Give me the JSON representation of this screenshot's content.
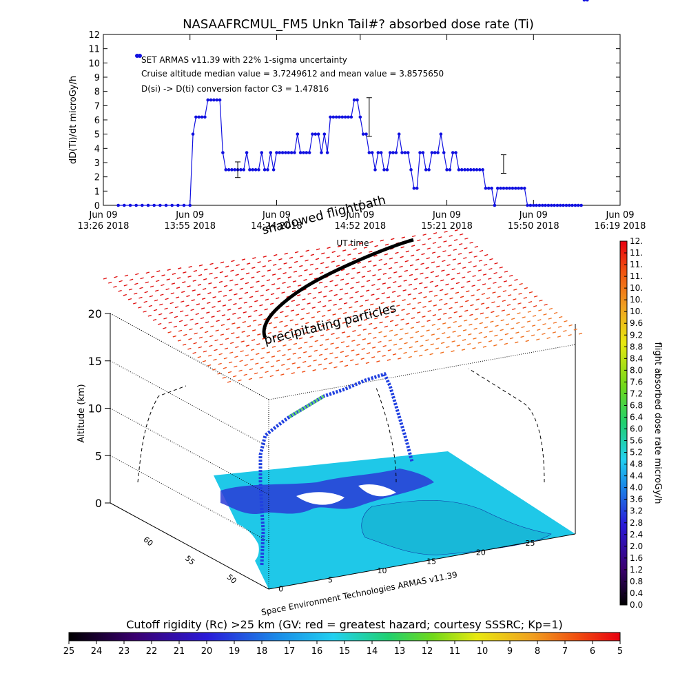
{
  "title": "NASAAFRCMUL_FM5 Unkn Tail#? absorbed dose rate (Ti)",
  "chart_data": [
    {
      "type": "line",
      "title": "NASAAFRCMUL_FM5 Unkn Tail#? absorbed dose rate (Ti)",
      "ylabel": "dD(Ti)/dt microGy/h",
      "xlabel": "UT time",
      "ylim": [
        0,
        12
      ],
      "yticks": [
        "0",
        "1",
        "2",
        "3",
        "4",
        "5",
        "6",
        "7",
        "8",
        "9",
        "10",
        "11",
        "12"
      ],
      "xlim_minutes": [
        0,
        173
      ],
      "xticks": [
        {
          "line1": "Jun 09",
          "line2": "13:26 2018",
          "min": 0
        },
        {
          "line1": "Jun 09",
          "line2": "13:55 2018",
          "min": 29
        },
        {
          "line1": "Jun 09",
          "line2": "14:24 2018",
          "min": 58
        },
        {
          "line1": "Jun 09",
          "line2": "14:52 2018",
          "min": 86
        },
        {
          "line1": "Jun 09",
          "line2": "15:21 2018",
          "min": 115
        },
        {
          "line1": "Jun 09",
          "line2": "15:50 2018",
          "min": 144
        },
        {
          "line1": "Jun 09",
          "line2": "16:19 2018",
          "min": 173
        }
      ],
      "annotations": [
        "SET ARMAS v11.39 with 22% 1-sigma uncertainty",
        "Cruise altitude median value = 3.7249612 and mean value = 3.8575650",
        "D(si) -> D(ti) conversion factor C3 = 1.47816"
      ],
      "series": [
        {
          "name": "SET ARMAS v11.39 with 22% 1-sigma uncertainty",
          "color": "#1010e0",
          "minutes": [
            5,
            7,
            9,
            11,
            13,
            15,
            17,
            19,
            21,
            23,
            25,
            27,
            29,
            30,
            31,
            32,
            33,
            34,
            35,
            36,
            37,
            38,
            39,
            40,
            41,
            42,
            43,
            44,
            45,
            46,
            47,
            48,
            49,
            50,
            51,
            52,
            53,
            54,
            55,
            56,
            57,
            58,
            59,
            60,
            61,
            62,
            63,
            64,
            65,
            66,
            67,
            68,
            69,
            70,
            71,
            72,
            73,
            74,
            75,
            76,
            77,
            78,
            79,
            80,
            81,
            82,
            83,
            84,
            85,
            86,
            87,
            88,
            89,
            90,
            91,
            92,
            93,
            94,
            95,
            96,
            97,
            98,
            99,
            100,
            101,
            102,
            103,
            104,
            105,
            106,
            107,
            108,
            109,
            110,
            111,
            112,
            113,
            114,
            115,
            116,
            117,
            118,
            119,
            120,
            121,
            122,
            123,
            124,
            125,
            126,
            127,
            128,
            129,
            130,
            131,
            132,
            133,
            134,
            135,
            136,
            137,
            138,
            139,
            140,
            141,
            142,
            143,
            144,
            145,
            146,
            147,
            148,
            149,
            150,
            151,
            152,
            153,
            154,
            155,
            156,
            157,
            158,
            159,
            160,
            161,
            162
          ],
          "values": [
            0,
            0,
            0,
            0,
            0,
            0,
            0,
            0,
            0,
            0,
            0,
            0,
            0,
            5,
            6.2,
            6.2,
            6.2,
            6.2,
            7.4,
            7.4,
            7.4,
            7.4,
            7.4,
            3.7,
            2.5,
            2.5,
            2.5,
            2.5,
            2.5,
            2.5,
            2.5,
            3.7,
            2.5,
            2.5,
            2.5,
            2.5,
            3.7,
            2.5,
            2.5,
            3.7,
            2.5,
            3.7,
            3.7,
            3.7,
            3.7,
            3.7,
            3.7,
            3.7,
            5,
            3.7,
            3.7,
            3.7,
            3.7,
            5,
            5,
            5,
            3.7,
            5,
            3.7,
            6.2,
            6.2,
            6.2,
            6.2,
            6.2,
            6.2,
            6.2,
            6.2,
            7.4,
            7.4,
            6.2,
            5,
            5,
            3.7,
            3.7,
            2.5,
            3.7,
            3.7,
            2.5,
            2.5,
            3.7,
            3.7,
            3.7,
            5,
            3.7,
            3.7,
            3.7,
            2.5,
            1.2,
            1.2,
            3.7,
            3.7,
            2.5,
            2.5,
            3.7,
            3.7,
            3.7,
            5,
            3.7,
            2.5,
            2.5,
            3.7,
            3.7,
            2.5,
            2.5,
            2.5,
            2.5,
            2.5,
            2.5,
            2.5,
            2.5,
            2.5,
            1.2,
            1.2,
            1.2,
            0,
            1.2,
            1.2,
            1.2,
            1.2,
            1.2,
            1.2,
            1.2,
            1.2,
            1.2,
            1.2,
            0,
            0,
            0,
            0,
            0,
            0,
            0,
            0,
            0,
            0,
            0,
            0,
            0,
            0,
            0,
            0,
            0,
            0,
            0
          ]
        }
      ],
      "error_bars": [
        {
          "min": 45,
          "value": 2.5,
          "err": 0.55
        },
        {
          "min": 89,
          "value": 6.2,
          "err": 1.36
        },
        {
          "min": 134,
          "value": 2.9,
          "err": 0.65
        }
      ]
    },
    {
      "type": "scatter",
      "ylabel": "Altitude (km)",
      "zticks": [
        "0",
        "5",
        "10",
        "15",
        "20"
      ],
      "lon_ticks": [
        "0",
        "5",
        "10",
        "15",
        "20",
        "25"
      ],
      "lat_ticks": [
        "50",
        "55",
        "60"
      ],
      "labels": {
        "shadow": "shadowed flightpath",
        "particles": "precipitating particles",
        "credit": "Space Environment Technologies ARMAS v11.39"
      }
    },
    {
      "type": "heatmap",
      "title": "flight absorbed dose rate microGy/h",
      "ticks": [
        "0.0",
        "0.4",
        "0.8",
        "1.2",
        "1.6",
        "2.0",
        "2.4",
        "2.8",
        "3.2",
        "3.6",
        "4.0",
        "4.4",
        "4.8",
        "5.2",
        "5.6",
        "6.0",
        "6.4",
        "6.8",
        "7.2",
        "7.6",
        "8.0",
        "8.4",
        "8.8",
        "9.2",
        "9.6",
        "10.",
        "10.",
        "10.",
        "11.",
        "11.",
        "11.",
        "12."
      ]
    },
    {
      "type": "heatmap",
      "title": "Cutoff rigidity (Rc) >25 km (GV: red = greatest hazard; courtesy SSSRC; Kp=1)",
      "ticks": [
        "25",
        "24",
        "23",
        "22",
        "21",
        "20",
        "19",
        "18",
        "17",
        "16",
        "15",
        "14",
        "13",
        "12",
        "11",
        "10",
        "9",
        "8",
        "7",
        "6",
        "5"
      ]
    }
  ],
  "colors": {
    "series": "#1010e0",
    "ocean": "#1fc8e8",
    "land_blue": "#2a3bd6",
    "grid": "#000000"
  }
}
